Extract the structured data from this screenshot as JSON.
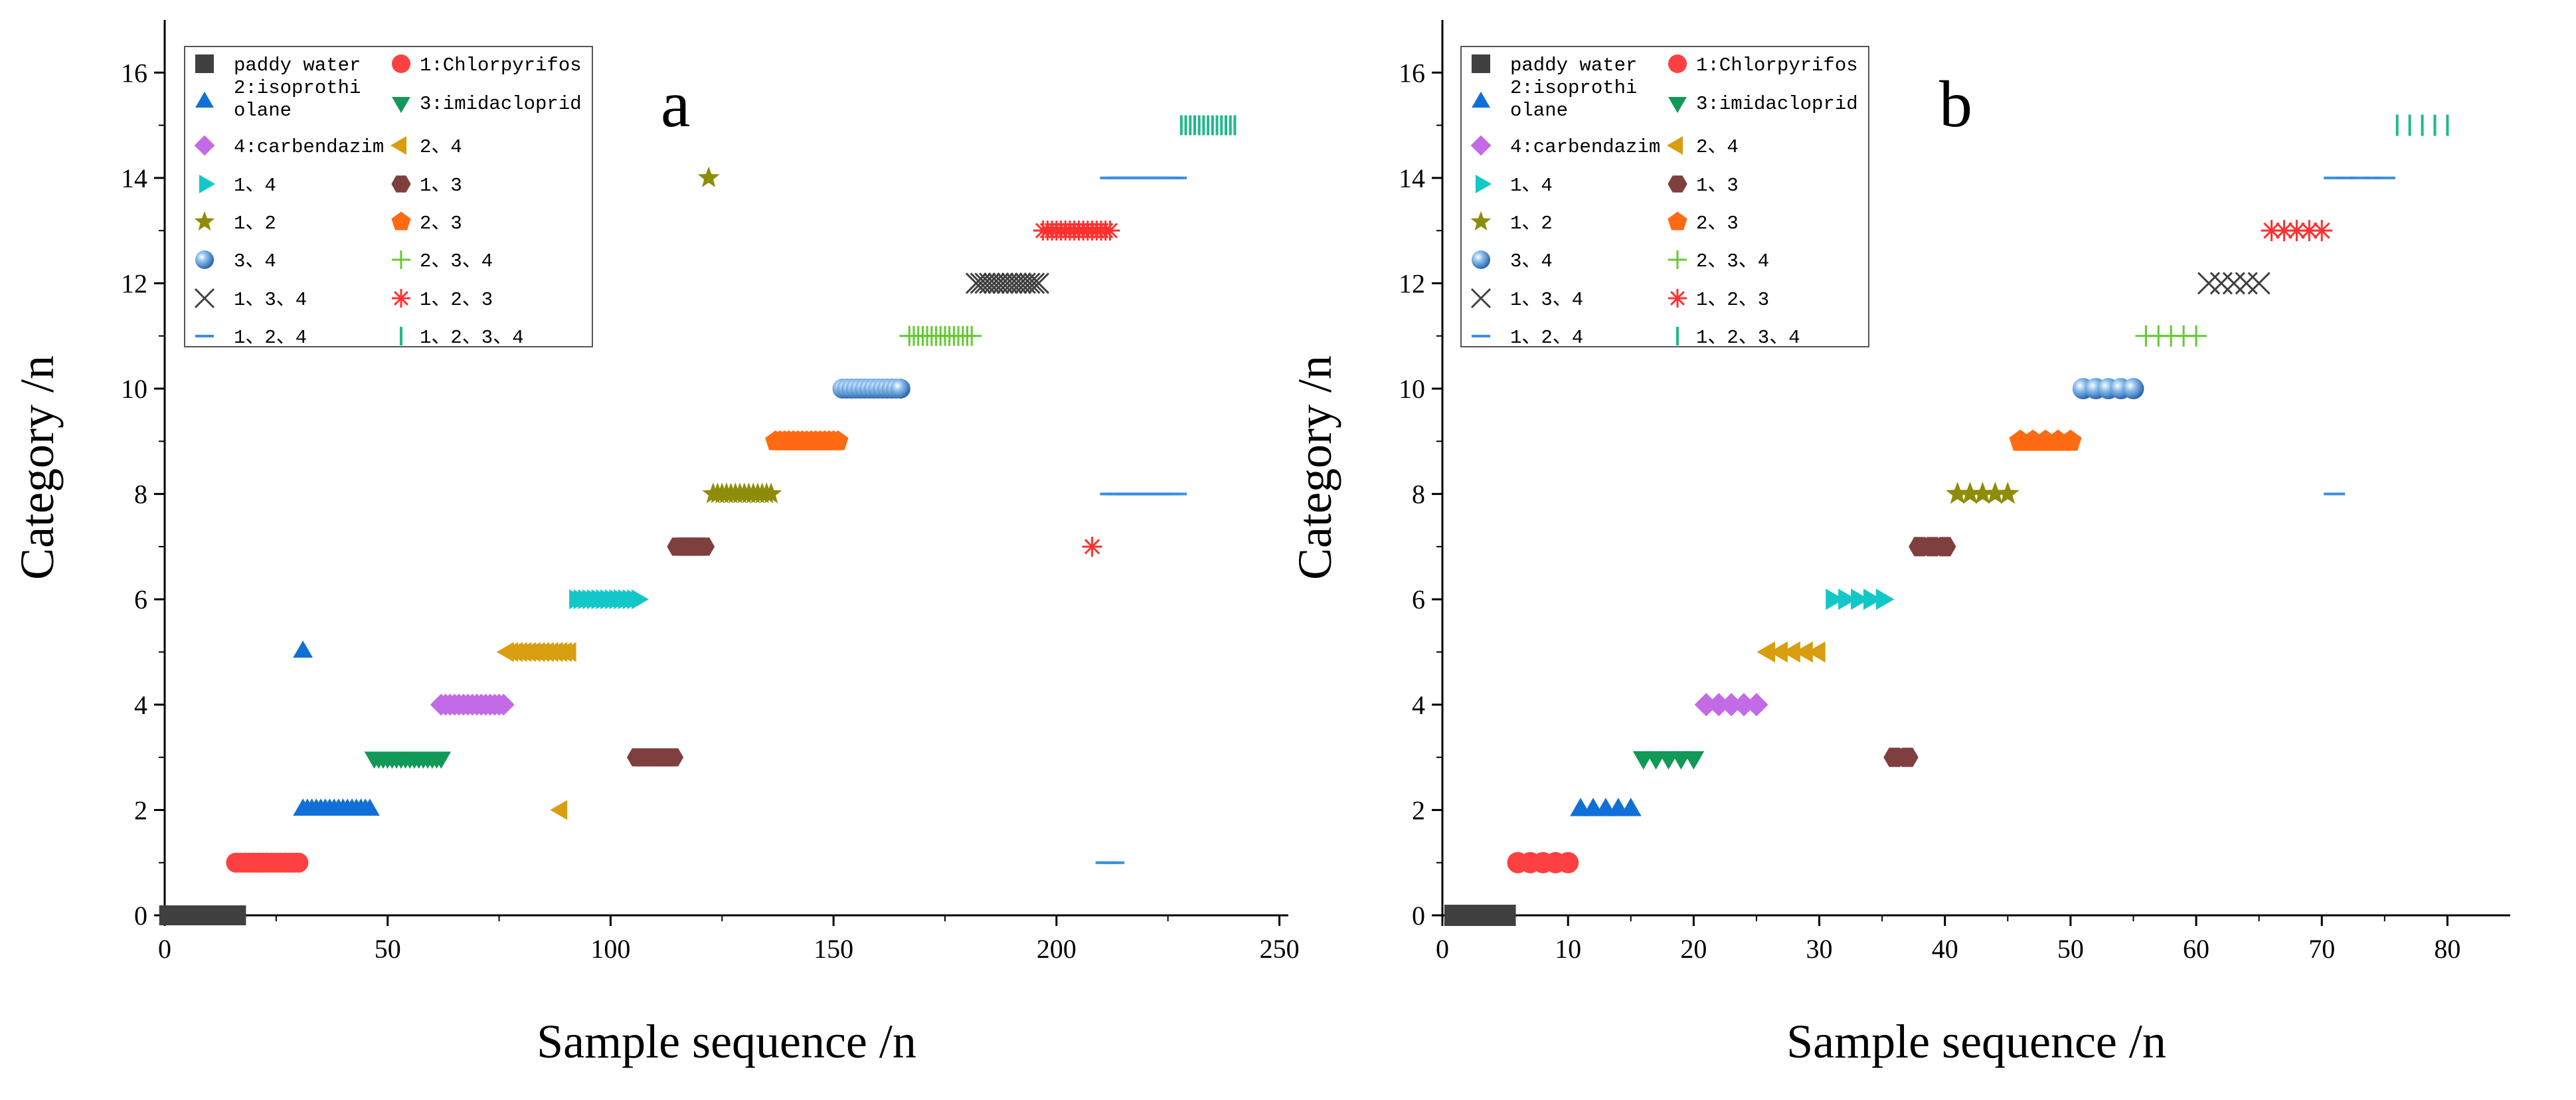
{
  "legend_entries": [
    {
      "key": "paddy",
      "label": "paddy water",
      "color": "#404040",
      "marker": "square"
    },
    {
      "key": "c1",
      "label": "1:Chlorpyrifos",
      "color": "#ff4040",
      "marker": "circle"
    },
    {
      "key": "c2",
      "label": "2:isoprothiolane",
      "label_lines": [
        "2:isoprothi",
        "olane"
      ],
      "color": "#1170d8",
      "marker": "triangle-up"
    },
    {
      "key": "c3",
      "label": "3:imidacloprid",
      "color": "#119957",
      "marker": "triangle-down"
    },
    {
      "key": "c4",
      "label": "4:carbendazim",
      "color": "#c36ae6",
      "marker": "diamond"
    },
    {
      "key": "c24",
      "label": "2、4",
      "color": "#d89e0f",
      "marker": "triangle-left"
    },
    {
      "key": "c14",
      "label": "1、4",
      "color": "#13c7c8",
      "marker": "triangle-right"
    },
    {
      "key": "c13",
      "label": "1、3",
      "color": "#7f3f3f",
      "marker": "hexagon"
    },
    {
      "key": "c12",
      "label": "1、2",
      "color": "#8d8d09",
      "marker": "star"
    },
    {
      "key": "c23",
      "label": "2、3",
      "color": "#ff6a12",
      "marker": "pentagon"
    },
    {
      "key": "c34",
      "label": "3、4",
      "color": "#3f83c9",
      "marker": "sphere"
    },
    {
      "key": "c234",
      "label": "2、3、4",
      "color": "#64c832",
      "marker": "plus"
    },
    {
      "key": "c134",
      "label": "1、3、4",
      "color": "#404040",
      "marker": "x"
    },
    {
      "key": "c123",
      "label": "1、2、3",
      "color": "#ff3030",
      "marker": "asterisk"
    },
    {
      "key": "c124",
      "label": "1、2、4",
      "color": "#3a8fe0",
      "marker": "hline"
    },
    {
      "key": "c1234",
      "label": "1、2、3、4",
      "color": "#20b88c",
      "marker": "vline"
    }
  ],
  "chart_data": [
    {
      "type": "scatter",
      "panel_letter": "a",
      "xlabel": "Sample sequence /n",
      "ylabel": "Category /n",
      "xlim": [
        0,
        252
      ],
      "ylim": [
        0,
        17
      ],
      "xticks": [
        0,
        50,
        100,
        150,
        200,
        250
      ],
      "yticks": [
        0,
        2,
        4,
        6,
        8,
        10,
        12,
        14,
        16
      ],
      "series": [
        {
          "key": "paddy",
          "y": 0,
          "ranges": [
            [
              1,
              16
            ]
          ]
        },
        {
          "key": "c1",
          "y": 1,
          "ranges": [
            [
              16,
              30
            ]
          ]
        },
        {
          "key": "c2",
          "y": 2,
          "ranges": [
            [
              31,
              46
            ]
          ]
        },
        {
          "key": "c2",
          "y": 5,
          "ranges": [
            [
              31,
              31
            ]
          ]
        },
        {
          "key": "c3",
          "y": 3,
          "ranges": [
            [
              47,
              62
            ]
          ]
        },
        {
          "key": "c4",
          "y": 4,
          "ranges": [
            [
              62,
              76
            ]
          ]
        },
        {
          "key": "c24",
          "y": 5,
          "ranges": [
            [
              77,
              91
            ]
          ]
        },
        {
          "key": "c24",
          "y": 2,
          "ranges": [
            [
              89,
              89
            ]
          ]
        },
        {
          "key": "c14",
          "y": 6,
          "ranges": [
            [
              92,
              106
            ]
          ]
        },
        {
          "key": "c13",
          "y": 3,
          "ranges": [
            [
              106,
              114
            ]
          ]
        },
        {
          "key": "c13",
          "y": 7,
          "ranges": [
            [
              115,
              121
            ]
          ]
        },
        {
          "key": "c12",
          "y": 14,
          "ranges": [
            [
              122,
              122
            ]
          ]
        },
        {
          "key": "c12",
          "y": 8,
          "ranges": [
            [
              123,
              136
            ]
          ]
        },
        {
          "key": "c23",
          "y": 9,
          "ranges": [
            [
              137,
              151
            ]
          ]
        },
        {
          "key": "c34",
          "y": 10,
          "ranges": [
            [
              152,
              165
            ]
          ]
        },
        {
          "key": "c234",
          "y": 11,
          "ranges": [
            [
              167,
              181
            ]
          ]
        },
        {
          "key": "c134",
          "y": 12,
          "ranges": [
            [
              182,
              196
            ]
          ]
        },
        {
          "key": "c123",
          "y": 13,
          "ranges": [
            [
              197,
              212
            ]
          ]
        },
        {
          "key": "c123",
          "y": 7,
          "ranges": [
            [
              208,
              208
            ]
          ]
        },
        {
          "key": "c124",
          "y": 14,
          "ranges": [
            [
              212,
              227
            ]
          ]
        },
        {
          "key": "c124",
          "y": 8,
          "ranges": [
            [
              212,
              227
            ]
          ]
        },
        {
          "key": "c124",
          "y": 1,
          "ranges": [
            [
              211,
              213
            ]
          ]
        },
        {
          "key": "c1234",
          "y": 15,
          "ranges": [
            [
              228,
              240
            ]
          ]
        }
      ]
    },
    {
      "type": "scatter",
      "panel_letter": "b",
      "xlabel": "Sample sequence /n",
      "ylabel": "Category /n",
      "xlim": [
        0,
        85
      ],
      "ylim": [
        0,
        17
      ],
      "xticks": [
        0,
        10,
        20,
        30,
        40,
        50,
        60,
        70,
        80
      ],
      "yticks": [
        0,
        2,
        4,
        6,
        8,
        10,
        12,
        14,
        16
      ],
      "series": [
        {
          "key": "paddy",
          "y": 0,
          "ranges": [
            [
              1,
              5
            ]
          ]
        },
        {
          "key": "c1",
          "y": 1,
          "ranges": [
            [
              6,
              10
            ]
          ]
        },
        {
          "key": "c2",
          "y": 2,
          "ranges": [
            [
              11,
              15
            ]
          ]
        },
        {
          "key": "c3",
          "y": 3,
          "ranges": [
            [
              16,
              20
            ]
          ]
        },
        {
          "key": "c4",
          "y": 4,
          "ranges": [
            [
              21,
              25
            ]
          ]
        },
        {
          "key": "c24",
          "y": 5,
          "ranges": [
            [
              26,
              30
            ]
          ]
        },
        {
          "key": "c14",
          "y": 6,
          "ranges": [
            [
              31,
              35
            ]
          ]
        },
        {
          "key": "c13",
          "y": 3,
          "ranges": [
            [
              36,
              37
            ]
          ]
        },
        {
          "key": "c13",
          "y": 7,
          "ranges": [
            [
              38,
              40
            ]
          ]
        },
        {
          "key": "c12",
          "y": 8,
          "ranges": [
            [
              41,
              45
            ]
          ]
        },
        {
          "key": "c23",
          "y": 9,
          "ranges": [
            [
              46,
              50
            ]
          ]
        },
        {
          "key": "c34",
          "y": 10,
          "ranges": [
            [
              51,
              55
            ]
          ]
        },
        {
          "key": "c234",
          "y": 11,
          "ranges": [
            [
              56,
              60
            ]
          ]
        },
        {
          "key": "c134",
          "y": 12,
          "ranges": [
            [
              61,
              65
            ]
          ]
        },
        {
          "key": "c123",
          "y": 13,
          "ranges": [
            [
              66,
              70
            ]
          ]
        },
        {
          "key": "c124",
          "y": 14,
          "ranges": [
            [
              71,
              75
            ]
          ]
        },
        {
          "key": "c124",
          "y": 8,
          "ranges": [
            [
              71,
              71
            ]
          ]
        },
        {
          "key": "c1234",
          "y": 15,
          "ranges": [
            [
              76,
              80
            ]
          ]
        }
      ]
    }
  ]
}
